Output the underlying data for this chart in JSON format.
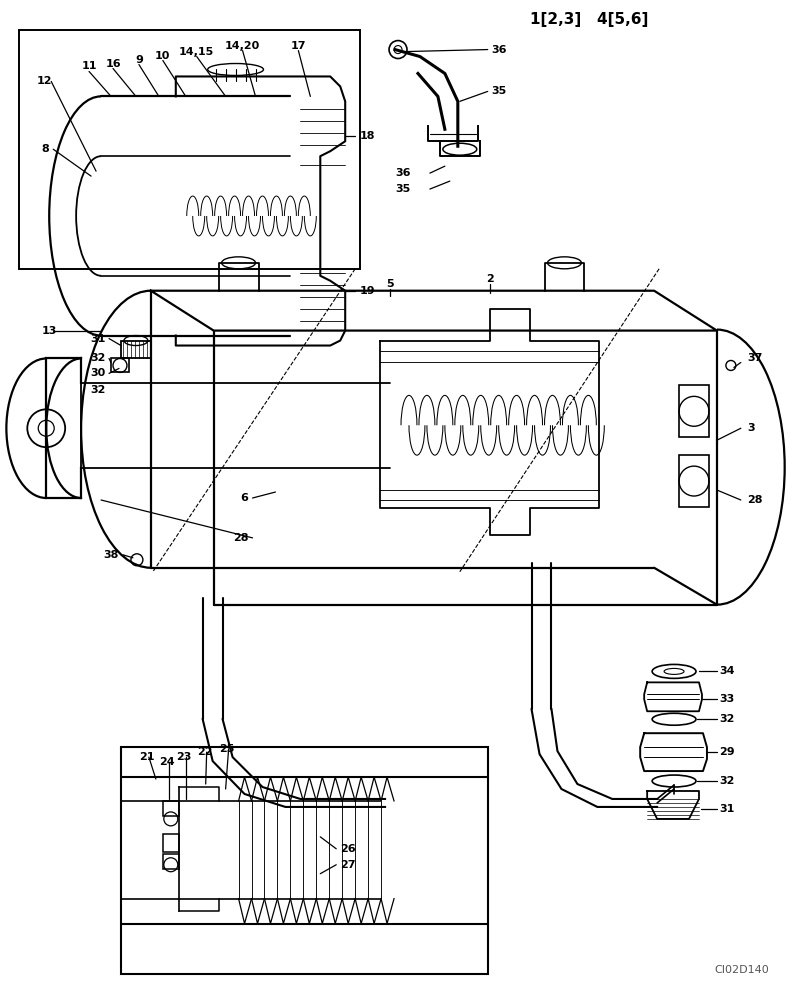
{
  "watermark": "CI02D140",
  "header_text": "1[2,3]   4[5,6]",
  "background_color": "#ffffff",
  "figsize": [
    8.08,
    10.0
  ],
  "dpi": 100
}
